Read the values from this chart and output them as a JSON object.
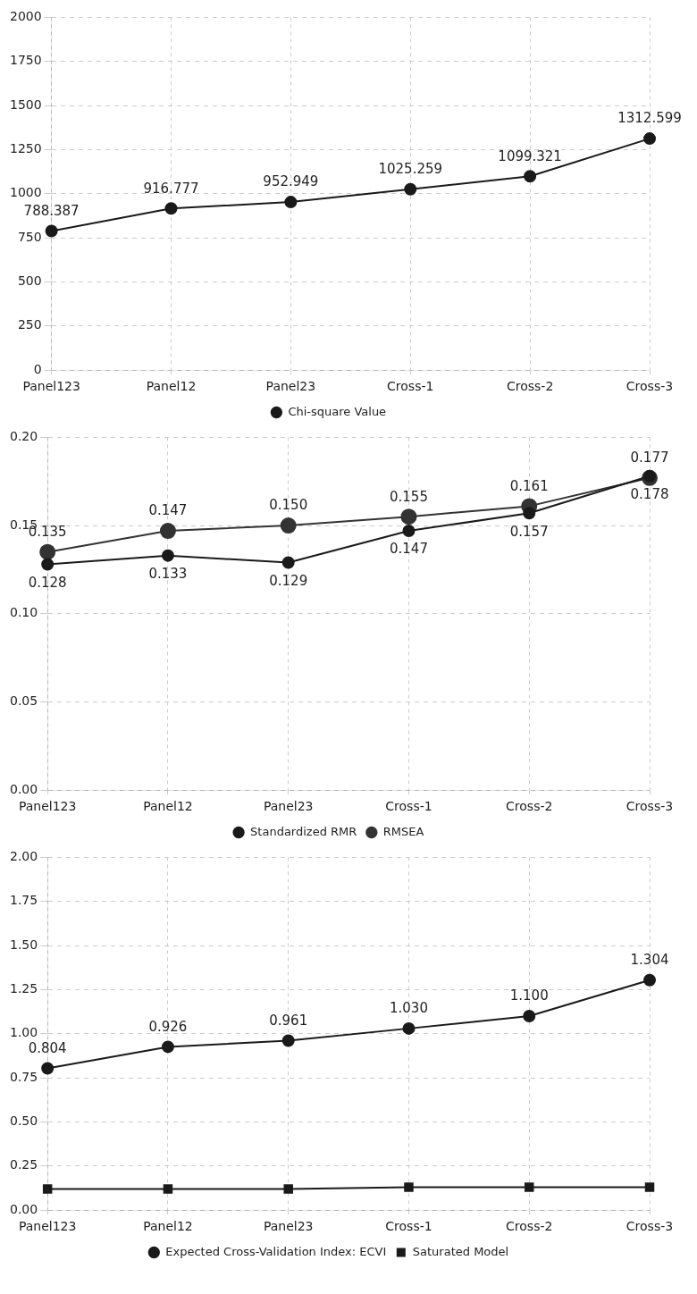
{
  "chart_data": [
    {
      "type": "line",
      "categories": [
        "Panel123",
        "Panel12",
        "Panel23",
        "Cross-1",
        "Cross-2",
        "Cross-3"
      ],
      "series": [
        {
          "name": "Chi-square Value",
          "color": "#1a1a1a",
          "marker": "circle",
          "values": [
            788.387,
            916.777,
            952.949,
            1025.259,
            1099.321,
            1312.599
          ]
        }
      ],
      "ylim": [
        0,
        2000
      ],
      "yticks": [
        0,
        250,
        500,
        750,
        1000,
        1250,
        1500,
        1750,
        2000
      ],
      "grid": true,
      "legend": "bottom",
      "data_labels": true
    },
    {
      "type": "line",
      "categories": [
        "Panel123",
        "Panel12",
        "Panel23",
        "Cross-1",
        "Cross-2",
        "Cross-3"
      ],
      "series": [
        {
          "name": "Standardized RMR",
          "color": "#1a1a1a",
          "marker": "circle",
          "values": [
            0.128,
            0.133,
            0.129,
            0.147,
            0.157,
            0.178
          ],
          "value_labels": [
            "0.128",
            "0.133",
            "0.129",
            "0.147",
            "0.157",
            "0.178"
          ]
        },
        {
          "name": "RMSEA",
          "color": "#333333",
          "marker": "circle",
          "values": [
            0.135,
            0.147,
            0.15,
            0.155,
            0.161,
            0.177
          ],
          "value_labels": [
            "0.135",
            "0.147",
            "0.150",
            "0.155",
            "0.161",
            "0.177"
          ]
        }
      ],
      "ylim": [
        0,
        0.2
      ],
      "yticks": [
        {
          "value": 0,
          "label": "0.00"
        },
        {
          "value": 0.05,
          "label": "0.05"
        },
        {
          "value": 0.1,
          "label": "0.10"
        },
        {
          "value": 0.15,
          "label": "0.15"
        },
        {
          "value": 0.2,
          "label": "0.20"
        }
      ],
      "grid": true,
      "legend": "bottom"
    },
    {
      "type": "line",
      "categories": [
        "Panel123",
        "Panel12",
        "Panel23",
        "Cross-1",
        "Cross-2",
        "Cross-3"
      ],
      "series": [
        {
          "name": "Expected Cross-Validation Index: ECVI",
          "color": "#1a1a1a",
          "marker": "circle",
          "values": [
            0.804,
            0.926,
            0.961,
            1.03,
            1.1,
            1.304
          ],
          "value_labels": [
            "0.804",
            "0.926",
            "0.961",
            "1.030",
            "1.100",
            "1.304"
          ]
        },
        {
          "name": "Saturated Model",
          "color": "#1a1a1a",
          "marker": "square",
          "values": [
            0.12,
            0.12,
            0.12,
            0.13,
            0.13,
            0.13
          ]
        }
      ],
      "ylim": [
        0,
        2
      ],
      "yticks": [
        {
          "value": 0,
          "label": "0.00"
        },
        {
          "value": 0.25,
          "label": "0.25"
        },
        {
          "value": 0.5,
          "label": "0.50"
        },
        {
          "value": 0.75,
          "label": "0.75"
        },
        {
          "value": 1,
          "label": "1.00"
        },
        {
          "value": 1.25,
          "label": "1.25"
        },
        {
          "value": 1.5,
          "label": "1.50"
        },
        {
          "value": 1.75,
          "label": "1.75"
        },
        {
          "value": 2,
          "label": "2.00"
        }
      ],
      "grid": true,
      "legend": "bottom"
    }
  ]
}
